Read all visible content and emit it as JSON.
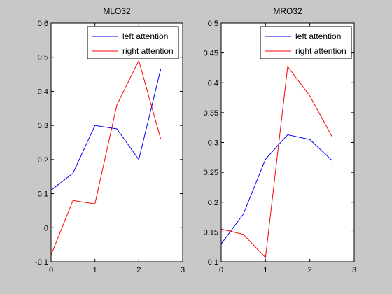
{
  "chart_data": [
    {
      "type": "line",
      "title": "MLO32",
      "xlabel": "",
      "ylabel": "",
      "xlim": [
        0,
        3
      ],
      "ylim": [
        -0.1,
        0.6
      ],
      "xticks": [
        0,
        1,
        2,
        3
      ],
      "xtick_labels": [
        "0",
        "1",
        "2",
        "3"
      ],
      "yticks": [
        -0.1,
        0,
        0.1,
        0.2,
        0.3,
        0.4,
        0.5,
        0.6
      ],
      "ytick_labels": [
        "-0.1",
        "0",
        "0.1",
        "0.2",
        "0.3",
        "0.4",
        "0.5",
        "0.6"
      ],
      "grid": false,
      "legend_position": "top-right",
      "x": [
        0,
        0.5,
        1,
        1.5,
        2,
        2.5
      ],
      "series": [
        {
          "name": "left attention",
          "color": "#0000ff",
          "values": [
            0.11,
            0.16,
            0.3,
            0.29,
            0.2,
            0.465
          ]
        },
        {
          "name": "right attention",
          "color": "#ff0000",
          "values": [
            -0.08,
            0.08,
            0.07,
            0.36,
            0.49,
            0.26
          ]
        }
      ]
    },
    {
      "type": "line",
      "title": "MRO32",
      "xlabel": "",
      "ylabel": "",
      "xlim": [
        0,
        3
      ],
      "ylim": [
        0.1,
        0.5
      ],
      "xticks": [
        0,
        1,
        2,
        3
      ],
      "xtick_labels": [
        "0",
        "1",
        "2",
        "3"
      ],
      "yticks": [
        0.1,
        0.15,
        0.2,
        0.25,
        0.3,
        0.35,
        0.4,
        0.45,
        0.5
      ],
      "ytick_labels": [
        "0.1",
        "0.15",
        "0.2",
        "0.25",
        "0.3",
        "0.35",
        "0.4",
        "0.45",
        "0.5"
      ],
      "grid": false,
      "legend_position": "top-right",
      "x": [
        0,
        0.5,
        1,
        1.5,
        2,
        2.5
      ],
      "series": [
        {
          "name": "left attention",
          "color": "#0000ff",
          "values": [
            0.13,
            0.18,
            0.272,
            0.313,
            0.305,
            0.27
          ]
        },
        {
          "name": "right attention",
          "color": "#ff0000",
          "values": [
            0.155,
            0.146,
            0.107,
            0.427,
            0.378,
            0.31
          ]
        }
      ]
    }
  ]
}
